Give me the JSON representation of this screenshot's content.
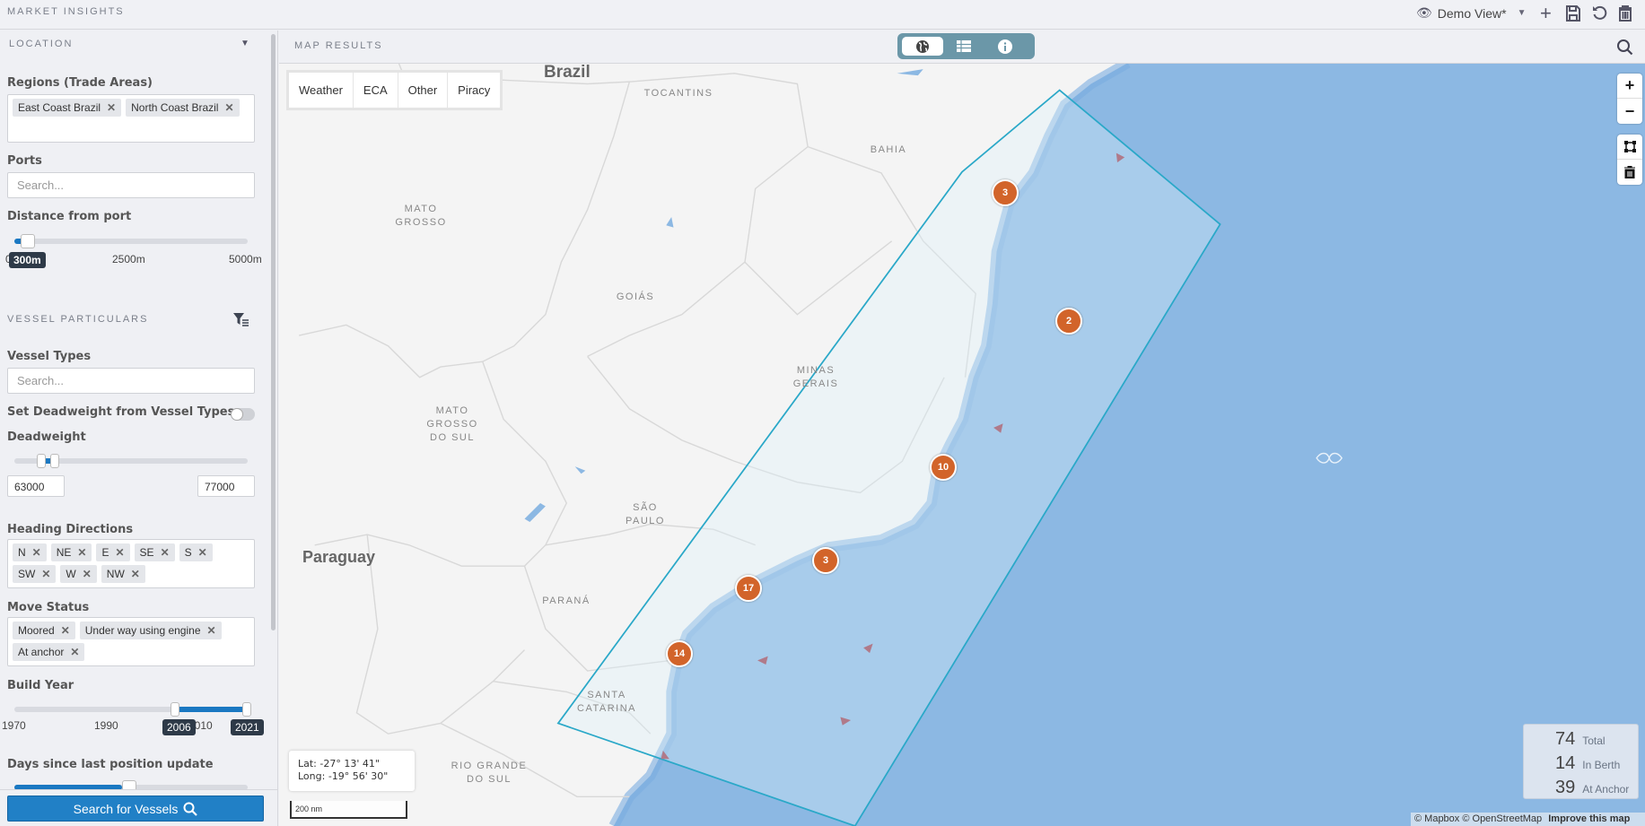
{
  "app": {
    "title": "MARKET INSIGHTS",
    "view_name": "Demo View*"
  },
  "colors": {
    "accent": "#1a78c2",
    "cluster": "#d2642a",
    "ocean": "#8cb8e3",
    "selection": "#2aa8c8",
    "toggle": "#6b97a8"
  },
  "sidebar": {
    "location": {
      "title": "LOCATION",
      "regions": {
        "label": "Regions (Trade Areas)",
        "tags": [
          "East Coast Brazil",
          "North Coast Brazil"
        ]
      },
      "ports": {
        "label": "Ports",
        "placeholder": "Search..."
      },
      "distance": {
        "label": "Distance from port",
        "value": "300m",
        "value_m": 300,
        "min": 0,
        "max": 5000,
        "ticks": [
          "0",
          "2500m",
          "5000m"
        ]
      }
    },
    "vessel": {
      "title": "VESSEL PARTICULARS",
      "types": {
        "label": "Vessel Types",
        "placeholder": "Search..."
      },
      "set_dwt": {
        "label": "Set Deadweight from Vessel Types",
        "on": false
      },
      "deadweight": {
        "label": "Deadweight",
        "min_value": "63000",
        "max_value": "77000"
      },
      "heading": {
        "label": "Heading Directions",
        "tags": [
          "N",
          "NE",
          "E",
          "SE",
          "S",
          "SW",
          "W",
          "NW"
        ]
      },
      "move": {
        "label": "Move Status",
        "tags": [
          "Moored",
          "Under way using engine",
          "At anchor"
        ]
      },
      "build": {
        "label": "Build Year",
        "from": "2006",
        "to": "2021",
        "ticks": [
          "1970",
          "1990",
          "2010"
        ]
      },
      "days": {
        "label": "Days since last position update"
      }
    },
    "search_button": "Search for Vessels"
  },
  "map": {
    "title": "MAP RESULTS",
    "view_toggle": [
      "globe-icon",
      "table-icon",
      "info-icon"
    ],
    "layers": [
      "Weather",
      "ECA",
      "Other",
      "Piracy"
    ],
    "labels": {
      "brazil": "Brazil",
      "tocantins": "TOCANTINS",
      "bahia": "BAHIA",
      "mato_grosso": "MATO\nGROSSO",
      "goias": "GOIÁS",
      "minas": "MINAS\nGERAIS",
      "mgds": "MATO\nGROSSO\nDO SUL",
      "sao_paulo": "SÃO\nPAULO",
      "paraguay": "Paraguay",
      "parana": "PARANÁ",
      "santa_catarina": "SANTA\nCATARINA",
      "rgds": "RIO GRANDE\nDO SUL"
    },
    "clusters": [
      "3",
      "2",
      "10",
      "3",
      "17",
      "14"
    ],
    "coords": {
      "lat": "Lat: -27° 13' 41\"",
      "long": "Long: -19° 56' 30\""
    },
    "scale": "200 nm",
    "stats": [
      {
        "n": "74",
        "label": "Total"
      },
      {
        "n": "14",
        "label": "In Berth"
      },
      {
        "n": "39",
        "label": "At Anchor"
      }
    ],
    "attribution": {
      "text": "© Mapbox © OpenStreetMap",
      "link": "Improve this map"
    }
  }
}
